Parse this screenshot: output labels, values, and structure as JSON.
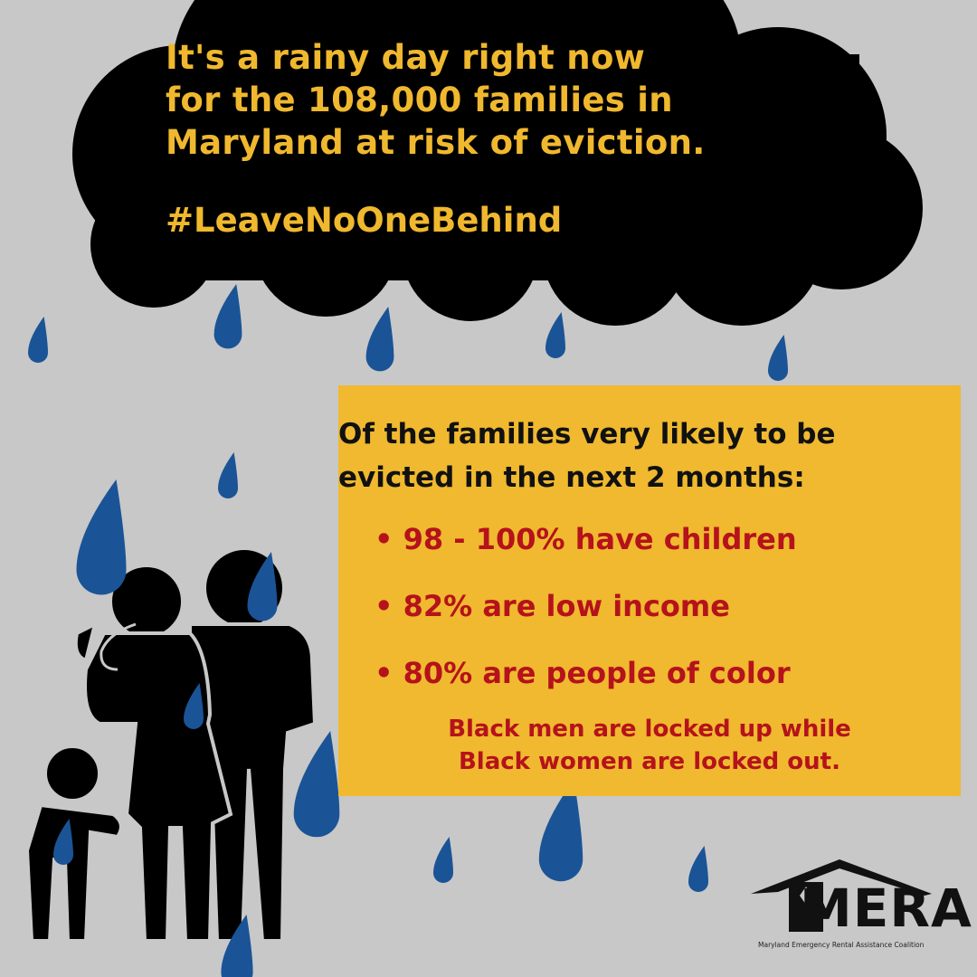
{
  "headline": {
    "lines": [
      "It's a rainy day right now",
      "for the 108,000 families in",
      "Maryland at risk of eviction."
    ],
    "hashtag": "#LeaveNoOneBehind"
  },
  "stats_box": {
    "intro_lines": [
      "Of the families very likely to be",
      "evicted in the next 2 months:"
    ],
    "bullets": [
      "• 98 - 100% have children",
      "• 82% are low income",
      "• 80% are people of color"
    ],
    "note_lines": [
      "Black men are locked up while",
      "Black women are locked out."
    ]
  },
  "logo": {
    "word": "MERA",
    "tagline": "Maryland Emergency Rental Assistance Coalition"
  },
  "colors": {
    "background": "#c8c8c8",
    "cloud": "#000000",
    "headline": "#f0b82e",
    "box": "#f0b92f",
    "bullet_text": "#b5121b",
    "raindrop": "#1a5496"
  },
  "icons": [
    "storm-cloud",
    "raindrop",
    "family-silhouette",
    "house-roof-logo"
  ]
}
